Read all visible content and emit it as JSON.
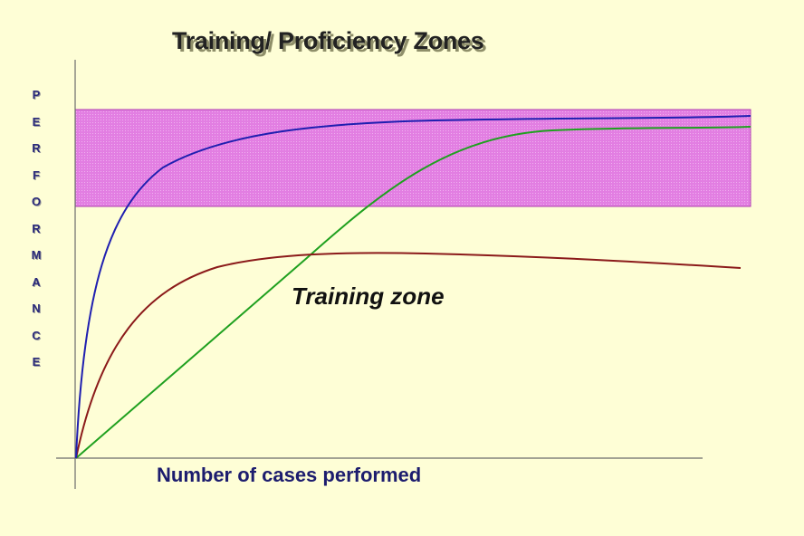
{
  "title": "Training/ Proficiency Zones",
  "y_axis_letters": [
    "P",
    "E",
    "R",
    "F",
    "O",
    "R",
    "M",
    "A",
    "N",
    "C",
    "E"
  ],
  "x_axis_label": "Number of cases performed",
  "zone_label": "Training zone",
  "colors": {
    "background": "#fefed6",
    "proficiency_band": "#e07ae0",
    "blue_curve": "#1f1fb0",
    "red_curve": "#8b1a1a",
    "green_curve": "#1fa01f",
    "axes": "#6b6b6b"
  }
}
